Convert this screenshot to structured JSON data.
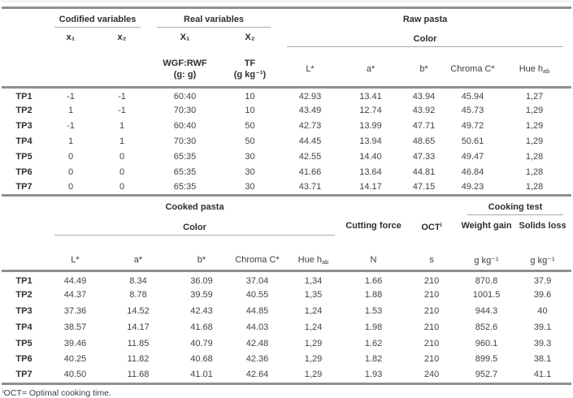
{
  "top_table": {
    "groups": {
      "codified": "Codified variables",
      "real": "Real variables",
      "raw_pasta": "Raw pasta",
      "color": "Color"
    },
    "columns": {
      "x1": "x₁",
      "x2": "x₂",
      "X1": "X₁",
      "X2": "X₂",
      "X1_name": "WGF:RWF",
      "X1_unit": "(g: g)",
      "X2_name": "TF",
      "X2_unit": "(g kg⁻¹)",
      "L": "L*",
      "a": "a*",
      "b": "b*",
      "chroma": "Chroma C*",
      "hue_base": "Hue h",
      "hue_sub": "ab"
    },
    "rows": [
      {
        "label": "TP1",
        "values": [
          "-1",
          "-1",
          "60:40",
          "10",
          "42.93",
          "13.41",
          "43.94",
          "45.94",
          "1,27"
        ]
      },
      {
        "label": "TP2",
        "values": [
          "1",
          "-1",
          "70:30",
          "10",
          "43.49",
          "12.74",
          "43.92",
          "45.73",
          "1,29"
        ]
      },
      {
        "label": "TP3",
        "values": [
          "-1",
          "1",
          "60:40",
          "50",
          "42.73",
          "13.99",
          "47.71",
          "49.72",
          "1,29"
        ]
      },
      {
        "label": "TP4",
        "values": [
          "1",
          "1",
          "70:30",
          "50",
          "44.45",
          "13.94",
          "48.65",
          "50.61",
          "1,29"
        ]
      },
      {
        "label": "TP5",
        "values": [
          "0",
          "0",
          "65:35",
          "30",
          "42.55",
          "14.40",
          "47.33",
          "49.47",
          "1,28"
        ]
      },
      {
        "label": "TP6",
        "values": [
          "0",
          "0",
          "65:35",
          "30",
          "41.66",
          "13.64",
          "44.81",
          "46.84",
          "1,28"
        ]
      },
      {
        "label": "TP7",
        "values": [
          "0",
          "0",
          "65:35",
          "30",
          "43.71",
          "14.17",
          "47.15",
          "49.23",
          "1,28"
        ]
      }
    ]
  },
  "bottom_table": {
    "groups": {
      "cooked_pasta": "Cooked pasta",
      "color": "Color",
      "cooking_test": "Cooking test"
    },
    "columns": {
      "L": "L*",
      "a": "a*",
      "b": "b*",
      "chroma": "Chroma C*",
      "hue_base": "Hue h",
      "hue_sub": "ab",
      "cutting_force": "Cutting force",
      "oct_base": "OCT",
      "oct_sup": "i",
      "weight_gain": "Weight gain",
      "solids_loss": "Solids loss",
      "unit_N": "N",
      "unit_s": "s",
      "unit_gkg_1": "g kg⁻¹",
      "unit_gkg_2": "g kg⁻¹"
    },
    "rows": [
      {
        "label": "TP1",
        "values": [
          "44.49",
          "8.34",
          "36.09",
          "37.04",
          "1,34",
          "1.66",
          "210",
          "870.8",
          "37.9"
        ]
      },
      {
        "label": "TP2",
        "values": [
          "44.37",
          "8.78",
          "39.59",
          "40.55",
          "1,35",
          "1.88",
          "210",
          "1001.5",
          "39.6"
        ]
      },
      {
        "label": "TP3",
        "values": [
          "37.36",
          "14.52",
          "42.43",
          "44.85",
          "1,24",
          "1.53",
          "210",
          "944.3",
          "40"
        ]
      },
      {
        "label": "TP4",
        "values": [
          "38.57",
          "14.17",
          "41.68",
          "44.03",
          "1,24",
          "1.98",
          "210",
          "852.6",
          "39.1"
        ]
      },
      {
        "label": "TP5",
        "values": [
          "39.46",
          "11.85",
          "40.79",
          "42.48",
          "1,29",
          "1.62",
          "210",
          "960.1",
          "39.3"
        ]
      },
      {
        "label": "TP6",
        "values": [
          "40.25",
          "11.82",
          "40.68",
          "42.36",
          "1,29",
          "1.82",
          "210",
          "899.5",
          "38.1"
        ]
      },
      {
        "label": "TP7",
        "values": [
          "40.50",
          "11.68",
          "41.01",
          "42.64",
          "1,29",
          "1.93",
          "240",
          "952.7",
          "41.1"
        ]
      }
    ]
  },
  "footnote": {
    "sup": "i",
    "text": "OCT= Optimal cooking time."
  }
}
